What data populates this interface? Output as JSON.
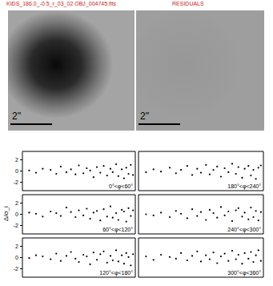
{
  "header": {
    "filename": "KIDS_186.0_-0.5_r_03_02 OBJ_004745.fits",
    "right_title": "RESIDUALS"
  },
  "images": [
    {
      "scale_label": "2''"
    },
    {
      "scale_label": "2''"
    }
  ],
  "ylabel": "Δ/σ_i",
  "chart_data": [
    {
      "type": "scatter",
      "title": "0°<φ<60°",
      "x": [
        0.6,
        1.2,
        1.8,
        2.5,
        3.0,
        3.4,
        3.9,
        4.3,
        4.7,
        5.0,
        5.4,
        5.7,
        6.0,
        6.3,
        6.6,
        6.9,
        7.2,
        7.5,
        7.8,
        8.0,
        8.3,
        8.5,
        8.8,
        9.0,
        9.2,
        9.4,
        9.6,
        9.8
      ],
      "values": [
        0.1,
        -0.3,
        0.4,
        0.2,
        -0.5,
        0.8,
        -0.2,
        0.3,
        -0.6,
        1.0,
        -0.4,
        0.5,
        0.1,
        -1.1,
        0.7,
        -0.3,
        0.9,
        -0.8,
        0.4,
        -0.2,
        1.2,
        -0.9,
        0.3,
        -1.3,
        0.6,
        -0.5,
        1.1,
        -0.7
      ],
      "xlim": [
        0,
        10
      ],
      "ylim": [
        -3.5,
        3.5
      ],
      "yticks": [
        -2,
        0,
        2
      ],
      "tick_labels": "y",
      "color": "#000000",
      "marker": "circle"
    },
    {
      "type": "scatter",
      "title": "180°<φ<240°",
      "x": [
        0.6,
        1.2,
        1.8,
        2.5,
        3.0,
        3.4,
        3.9,
        4.3,
        4.7,
        5.0,
        5.4,
        5.7,
        6.0,
        6.3,
        6.6,
        6.9,
        7.2,
        7.5,
        7.8,
        8.0,
        8.3,
        8.5,
        8.8,
        9.0,
        9.2,
        9.4,
        9.6,
        9.8
      ],
      "values": [
        -0.2,
        0.3,
        -0.1,
        0.6,
        -0.4,
        0.2,
        0.9,
        -0.7,
        0.4,
        -0.3,
        1.1,
        -0.6,
        0.2,
        0.8,
        -1.0,
        0.5,
        -0.2,
        1.3,
        -0.5,
        0.7,
        -1.2,
        0.4,
        0.9,
        -0.8,
        0.2,
        -1.4,
        0.6,
        1.0
      ],
      "xlim": [
        0,
        10
      ],
      "ylim": [
        -3.5,
        3.5
      ],
      "yticks": [
        -2,
        0,
        2
      ],
      "tick_labels": false,
      "color": "#000000",
      "marker": "circle"
    },
    {
      "type": "scatter",
      "title": "60°<φ<120°",
      "x": [
        0.6,
        1.2,
        1.8,
        2.5,
        3.0,
        3.4,
        3.9,
        4.3,
        4.7,
        5.0,
        5.4,
        5.7,
        6.0,
        6.3,
        6.6,
        6.9,
        7.2,
        7.5,
        7.8,
        8.0,
        8.3,
        8.5,
        8.8,
        9.0,
        9.2,
        9.4,
        9.6,
        9.8
      ],
      "values": [
        0.3,
        0.1,
        -0.4,
        0.5,
        0.2,
        -0.3,
        1.2,
        0.4,
        -0.5,
        0.7,
        -0.2,
        1.0,
        -0.8,
        0.3,
        0.6,
        -1.1,
        0.9,
        -0.4,
        1.4,
        -0.6,
        0.2,
        -1.0,
        0.8,
        0.5,
        -1.3,
        1.1,
        -0.3,
        0.7
      ],
      "xlim": [
        0,
        10
      ],
      "ylim": [
        -3.5,
        3.5
      ],
      "yticks": [
        -2,
        0,
        2
      ],
      "tick_labels": "y",
      "color": "#000000",
      "marker": "circle"
    },
    {
      "type": "scatter",
      "title": "240°<φ<300°",
      "x": [
        0.6,
        1.2,
        1.8,
        2.5,
        3.0,
        3.4,
        3.9,
        4.3,
        4.7,
        5.0,
        5.4,
        5.7,
        6.0,
        6.3,
        6.6,
        6.9,
        7.2,
        7.5,
        7.8,
        8.0,
        8.3,
        8.5,
        8.8,
        9.0,
        9.2,
        9.4,
        9.6,
        9.8
      ],
      "values": [
        0.0,
        -0.2,
        0.3,
        -0.5,
        0.6,
        0.1,
        -0.7,
        0.9,
        -0.3,
        0.4,
        -1.0,
        0.8,
        0.2,
        -0.6,
        1.3,
        -0.2,
        0.5,
        -1.2,
        0.7,
        1.1,
        -0.4,
        0.3,
        -0.9,
        1.2,
        -0.5,
        0.6,
        -1.1,
        0.4
      ],
      "xlim": [
        0,
        10
      ],
      "ylim": [
        -3.5,
        3.5
      ],
      "yticks": [
        -2,
        0,
        2
      ],
      "tick_labels": false,
      "color": "#000000",
      "marker": "circle"
    },
    {
      "type": "scatter",
      "title": "120°<φ<180°",
      "x": [
        0.6,
        1.2,
        1.8,
        2.5,
        3.0,
        3.4,
        3.9,
        4.3,
        4.7,
        5.0,
        5.4,
        5.7,
        6.0,
        6.3,
        6.6,
        6.9,
        7.2,
        7.5,
        7.8,
        8.0,
        8.3,
        8.5,
        8.8,
        9.0,
        9.2,
        9.4,
        9.6,
        9.8
      ],
      "values": [
        -0.1,
        0.4,
        0.2,
        -0.3,
        0.7,
        -0.6,
        0.3,
        1.0,
        -0.2,
        -0.8,
        0.5,
        0.2,
        -1.2,
        0.9,
        -0.4,
        0.6,
        1.1,
        -0.9,
        0.3,
        -0.5,
        1.3,
        -0.7,
        0.4,
        -1.1,
        0.8,
        0.1,
        -1.4,
        0.6
      ],
      "xlim": [
        0,
        10
      ],
      "ylim": [
        -3.5,
        3.5
      ],
      "yticks": [
        -2,
        0,
        2
      ],
      "tick_labels": "y",
      "color": "#000000",
      "marker": "circle"
    },
    {
      "type": "scatter",
      "title": "300°<φ<360°",
      "x": [
        0.6,
        1.2,
        1.8,
        2.5,
        3.0,
        3.4,
        3.9,
        4.3,
        4.7,
        5.0,
        5.4,
        5.7,
        6.0,
        6.3,
        6.6,
        6.9,
        7.2,
        7.5,
        7.8,
        8.0,
        8.3,
        8.5,
        8.8,
        9.0,
        9.2,
        9.4,
        9.6,
        9.8
      ],
      "values": [
        0.2,
        -0.4,
        0.5,
        0.1,
        -0.2,
        0.8,
        -0.5,
        0.3,
        1.1,
        -0.7,
        0.4,
        -0.3,
        0.9,
        -1.0,
        0.2,
        0.7,
        -0.6,
        1.2,
        -0.3,
        0.5,
        -1.1,
        0.8,
        -0.2,
        1.0,
        -0.8,
        0.4,
        1.3,
        -0.6
      ],
      "xlim": [
        0,
        10
      ],
      "ylim": [
        -3.5,
        3.5
      ],
      "yticks": [
        -2,
        0,
        2
      ],
      "tick_labels": false,
      "color": "#000000",
      "marker": "circle"
    }
  ]
}
